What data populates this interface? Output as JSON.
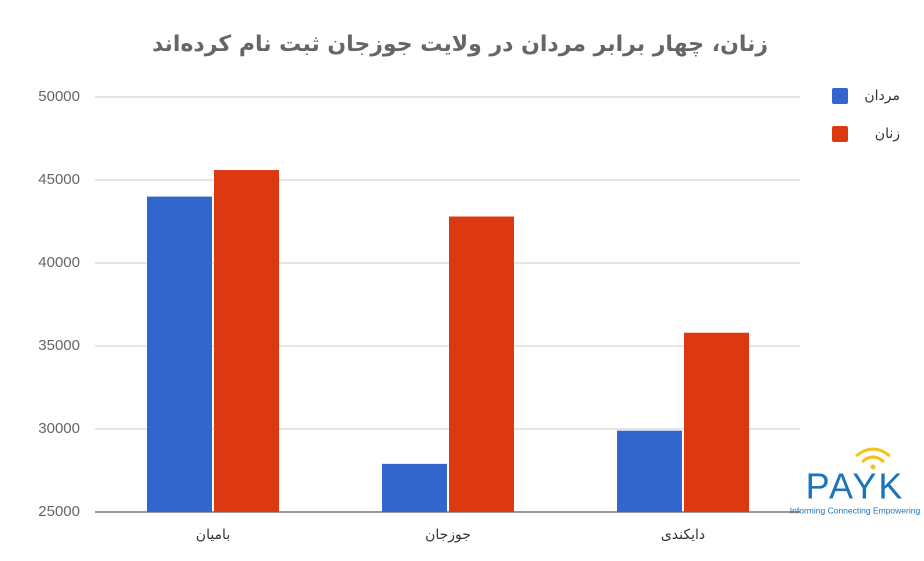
{
  "chart_data": {
    "type": "bar",
    "title": "زنان، چهار برابر مردان در ولایت جوزجان ثبت نام کرده‌اند",
    "categories": [
      "بامیان",
      "جوزجان",
      "دایکندی"
    ],
    "series": [
      {
        "name": "مردان",
        "color": "#3366cc",
        "values": [
          44000,
          27900,
          29900
        ]
      },
      {
        "name": "زنان",
        "color": "#dc3912",
        "values": [
          45600,
          42800,
          35800
        ]
      }
    ],
    "ylim": [
      25000,
      50000
    ],
    "yticks": [
      25000,
      30000,
      35000,
      40000,
      45000,
      50000
    ],
    "grid": true,
    "legend": "right"
  },
  "logo": {
    "name": "PAYK",
    "tagline": "Informing Connecting Empowering"
  }
}
